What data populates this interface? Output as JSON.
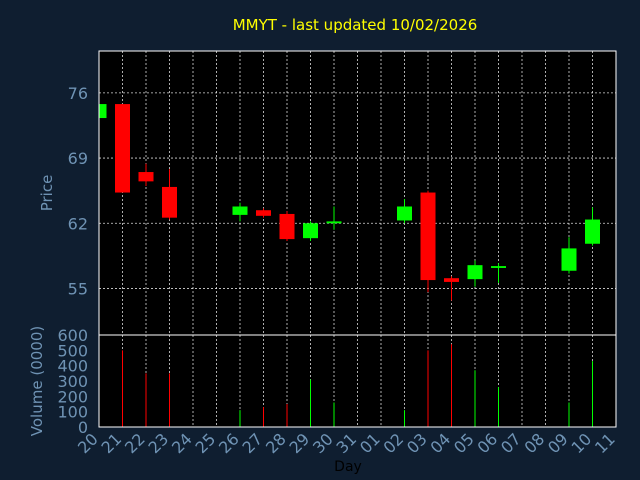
{
  "chart_data": {
    "type": "candlestick",
    "title": "MMYT - last updated 10/02/2026",
    "xlabel": "Day",
    "x_ticks": [
      "20",
      "21",
      "22",
      "23",
      "24",
      "25",
      "26",
      "27",
      "28",
      "29",
      "30",
      "31",
      "01",
      "02",
      "03",
      "04",
      "05",
      "06",
      "07",
      "08",
      "09",
      "10",
      "11"
    ],
    "price": {
      "ylabel": "Price",
      "y_ticks": [
        55,
        62,
        69,
        76
      ],
      "ylim": [
        50.0,
        80.5
      ],
      "candles": [
        {
          "day": "20",
          "open": 73.3,
          "close": 74.8,
          "high": 74.8,
          "low": 73.3
        },
        {
          "day": "21",
          "open": 74.8,
          "close": 65.3,
          "high": 74.8,
          "low": 65.3
        },
        {
          "day": "22",
          "open": 67.5,
          "close": 66.5,
          "high": 68.4,
          "low": 66.0
        },
        {
          "day": "23",
          "open": 65.9,
          "close": 62.6,
          "high": 67.8,
          "low": 62.4
        },
        {
          "day": "26",
          "open": 62.9,
          "close": 63.8,
          "high": 64.2,
          "low": 62.2
        },
        {
          "day": "27",
          "open": 63.4,
          "close": 62.8,
          "high": 63.6,
          "low": 62.6
        },
        {
          "day": "28",
          "open": 63.0,
          "close": 60.3,
          "high": 63.3,
          "low": 60.1
        },
        {
          "day": "29",
          "open": 60.4,
          "close": 62.0,
          "high": 62.2,
          "low": 60.1
        },
        {
          "day": "30",
          "open": 62.0,
          "close": 62.2,
          "high": 63.8,
          "low": 61.3
        },
        {
          "day": "02",
          "open": 62.3,
          "close": 63.8,
          "high": 64.6,
          "low": 62.0
        },
        {
          "day": "03",
          "open": 65.3,
          "close": 55.9,
          "high": 65.5,
          "low": 54.6
        },
        {
          "day": "04",
          "open": 56.1,
          "close": 55.7,
          "high": 56.3,
          "low": 53.7
        },
        {
          "day": "05",
          "open": 56.0,
          "close": 57.5,
          "high": 58.0,
          "low": 55.2
        },
        {
          "day": "06",
          "open": 57.2,
          "close": 57.4,
          "high": 57.7,
          "low": 55.6
        },
        {
          "day": "09",
          "open": 56.9,
          "close": 59.3,
          "high": 60.5,
          "low": 56.6
        },
        {
          "day": "10",
          "open": 59.8,
          "close": 62.4,
          "high": 63.7,
          "low": 59.6
        }
      ]
    },
    "volume": {
      "ylabel": "Volume (0000)",
      "y_ticks": [
        0,
        100,
        200,
        300,
        400,
        500,
        600
      ],
      "ylim": [
        0,
        600
      ],
      "bars": [
        {
          "day": "20",
          "value": 0,
          "direction": "up"
        },
        {
          "day": "21",
          "value": 500,
          "direction": "down"
        },
        {
          "day": "22",
          "value": 350,
          "direction": "down"
        },
        {
          "day": "23",
          "value": 350,
          "direction": "down"
        },
        {
          "day": "26",
          "value": 110,
          "direction": "up"
        },
        {
          "day": "27",
          "value": 130,
          "direction": "down"
        },
        {
          "day": "28",
          "value": 150,
          "direction": "down"
        },
        {
          "day": "29",
          "value": 310,
          "direction": "up"
        },
        {
          "day": "30",
          "value": 160,
          "direction": "up"
        },
        {
          "day": "02",
          "value": 110,
          "direction": "up"
        },
        {
          "day": "03",
          "value": 500,
          "direction": "down"
        },
        {
          "day": "04",
          "value": 540,
          "direction": "down"
        },
        {
          "day": "05",
          "value": 370,
          "direction": "up"
        },
        {
          "day": "06",
          "value": 260,
          "direction": "up"
        },
        {
          "day": "09",
          "value": 160,
          "direction": "up"
        },
        {
          "day": "10",
          "value": 430,
          "direction": "up"
        }
      ]
    },
    "colors": {
      "up": "#00ff00",
      "down": "#ff0000",
      "background": "#0f1e30",
      "plot": "#000000",
      "title": "#ffff00",
      "axis_text": "#6f93b4"
    },
    "grid": true
  }
}
